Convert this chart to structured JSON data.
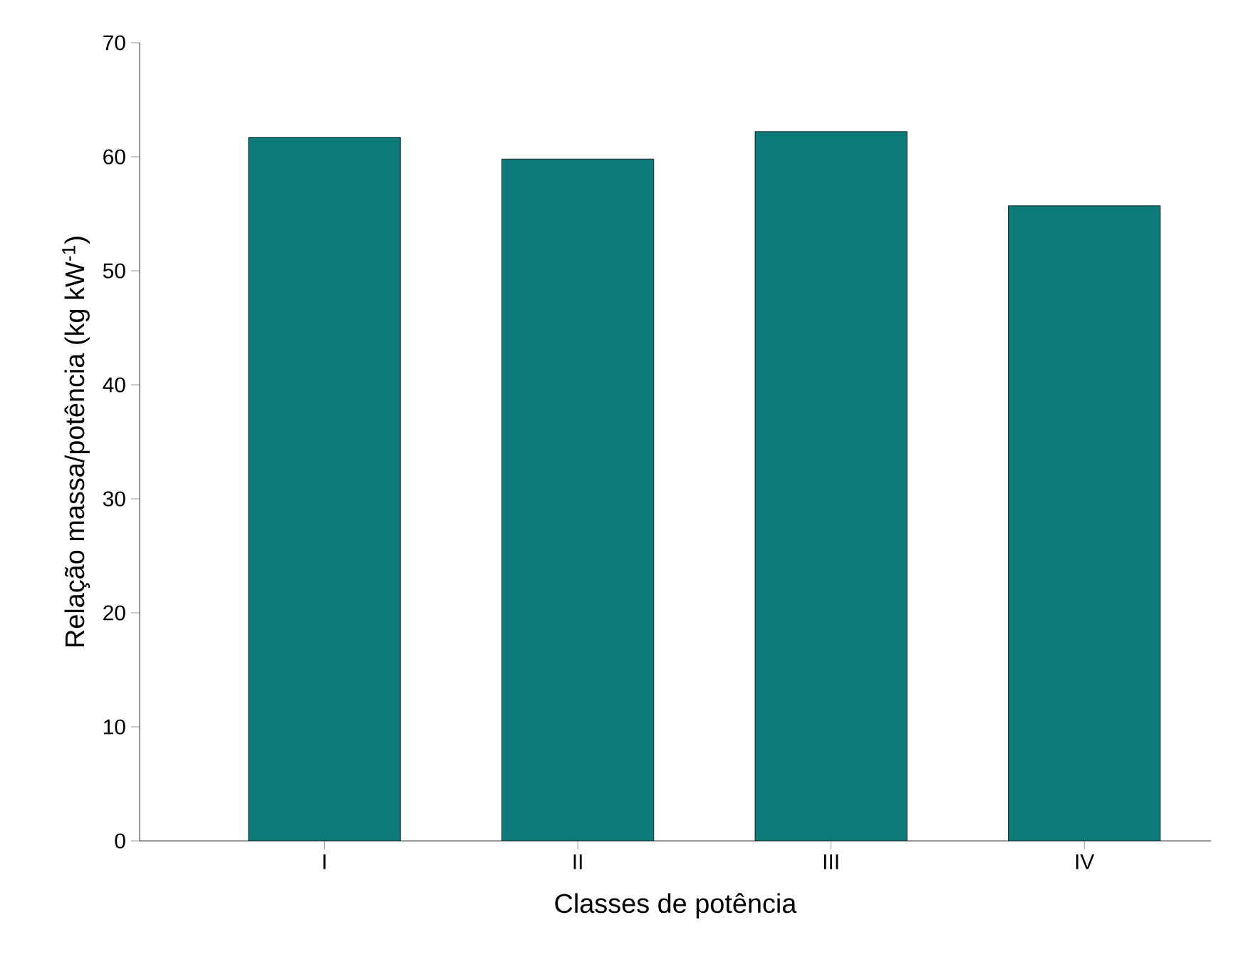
{
  "chart_data": {
    "type": "bar",
    "xlabel": "Classes de potência",
    "ylabel": "Relação massa/potência (kg kW$^{-1}$)",
    "categories": [
      "I",
      "II",
      "III",
      "IV"
    ],
    "values": [
      61.7,
      59.8,
      62.2,
      55.7
    ],
    "color": "#0e7b7b",
    "ylim": [
      0,
      70
    ],
    "yticks": [
      0,
      10,
      20,
      30,
      40,
      50,
      60,
      70
    ]
  }
}
